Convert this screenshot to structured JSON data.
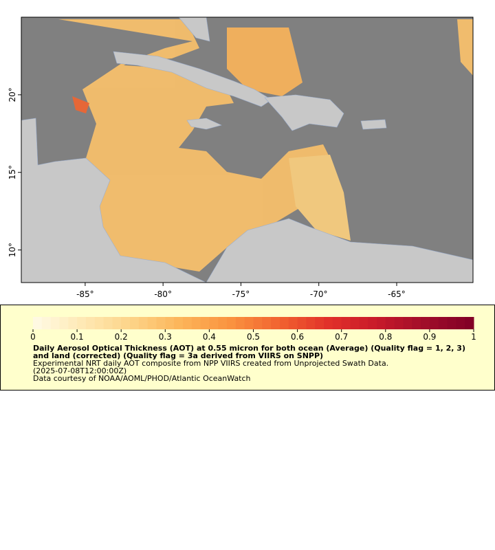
{
  "map": {
    "xlim": [
      -89.1,
      -60.1
    ],
    "ylim": [
      7.9,
      25
    ],
    "xticks": [
      {
        "value": -85,
        "label": "-85°"
      },
      {
        "value": -80,
        "label": "-80°"
      },
      {
        "value": -75,
        "label": "-75°"
      },
      {
        "value": -70,
        "label": "-70°"
      },
      {
        "value": -65,
        "label": "-65°"
      }
    ],
    "yticks": [
      {
        "value": 10,
        "label": "10°"
      },
      {
        "value": 15,
        "label": "15°"
      },
      {
        "value": 20,
        "label": "20°"
      }
    ],
    "ocean_color": "#808080",
    "land_color": "#c8c8c8"
  },
  "colorbar": {
    "lim": [
      0,
      1
    ],
    "ticks": [
      0,
      0.1,
      0.2,
      0.3,
      0.4,
      0.5,
      0.6,
      0.7,
      0.8,
      0.9,
      1
    ],
    "colors": [
      "#fffbe6",
      "#fee9b5",
      "#fdd488",
      "#fcb55a",
      "#fa9440",
      "#f26530",
      "#e2322a",
      "#c81a2a",
      "#a00d2a",
      "#800026"
    ]
  },
  "legend": {
    "title": "Daily Aerosol Optical Thickness (AOT) at 0.55 micron for both ocean (Average) (Quality flag = 1, 2, 3) and land (corrected) (Quality flag = 3a derived from VIIRS on SNPP)",
    "lines": [
      "Experimental NRT daily AOT composite from NPP VIIRS created from Unprojected Swath Data.",
      "(2025-07-08T12:00:00Z)",
      "Data courtesy of NOAA/AOML/PHOD/Atlantic OceanWatch"
    ]
  }
}
